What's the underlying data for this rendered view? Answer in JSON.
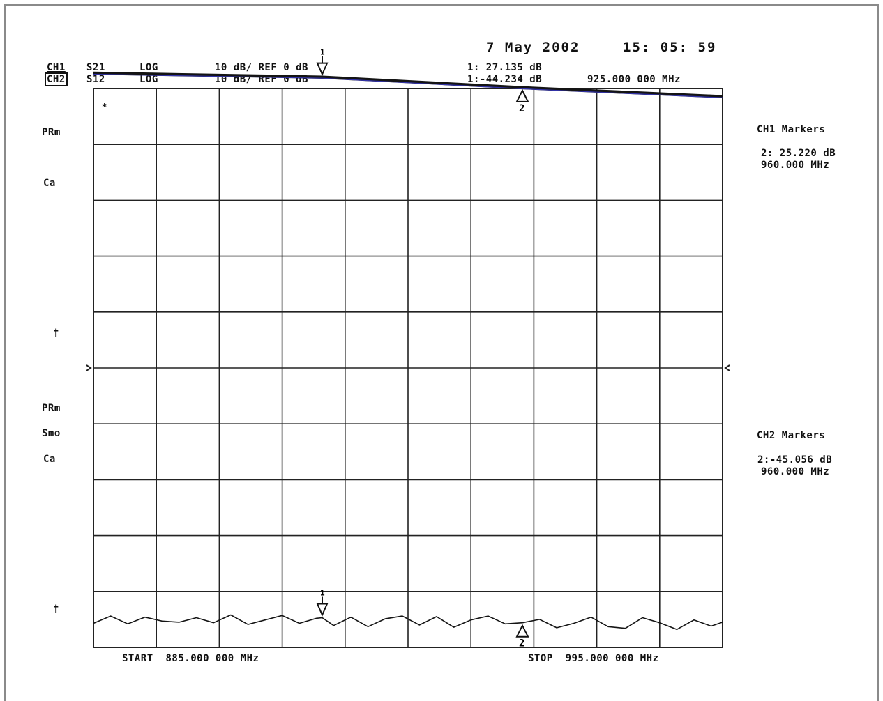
{
  "header": {
    "date": "7 May 2002",
    "time": "15: 05: 59",
    "ch1": {
      "label": "CH1",
      "param": "S21",
      "format": "LOG",
      "scale": "10 dB/ REF 0 dB"
    },
    "ch2": {
      "label": "CH2",
      "param": "S12",
      "format": "LOG",
      "scale": "10 dB/ REF 0 dB"
    },
    "marker1_ch1": "1: 27.135 dB",
    "marker1_ch2": "1:-44.234 dB",
    "marker1_freq": "925.000 000 MHz"
  },
  "left_annotations": {
    "ch1": [
      "PRm",
      "Ca"
    ],
    "ch1_ref": "†",
    "ch2": [
      "PRm",
      "Smo",
      "Ca"
    ],
    "ch2_ref": "†",
    "top_marker": "*"
  },
  "right_panel": {
    "ch1_title": "CH1 Markers",
    "ch1_value": "2: 25.220 dB",
    "ch1_freq": "960.000 MHz",
    "ch2_title": "CH2 Markers",
    "ch2_value": "2:-45.056 dB",
    "ch2_freq": "960.000 MHz"
  },
  "footer": {
    "start": "START  885.000 000 MHz",
    "stop": "STOP  995.000 000 MHz"
  },
  "colors": {
    "trace": "#141414",
    "trace_tint": "#3b3bd0",
    "grid": "#222222",
    "frame": "#8a8a8a"
  },
  "chart_data": {
    "type": "line",
    "x_start_mhz": 885,
    "x_stop_mhz": 995,
    "divisions_x": 10,
    "divisions_y": 10,
    "series": [
      {
        "name": "CH1 S21",
        "unit": "dB",
        "x_mhz": [
          885,
          925,
          960,
          995
        ],
        "y_db": [
          27.8,
          27.1,
          25.2,
          23.6
        ]
      },
      {
        "name": "CH2 S12",
        "unit": "dB",
        "x_mhz": [
          885,
          888,
          891,
          894,
          897,
          900,
          903,
          906,
          909,
          912,
          915,
          918,
          921,
          924,
          925,
          927,
          930,
          933,
          936,
          939,
          942,
          945,
          948,
          951,
          954,
          957,
          960,
          963,
          966,
          969,
          972,
          975,
          978,
          981,
          984,
          987,
          990,
          993,
          995
        ],
        "y_db": [
          -45.2,
          -43.9,
          -45.3,
          -44.1,
          -44.8,
          -45.0,
          -44.2,
          -45.1,
          -43.7,
          -45.4,
          -44.6,
          -43.8,
          -45.2,
          -44.3,
          -44.2,
          -45.6,
          -44.1,
          -45.8,
          -44.4,
          -43.9,
          -45.5,
          -44.0,
          -45.9,
          -44.6,
          -43.9,
          -45.3,
          -45.1,
          -44.5,
          -46.0,
          -45.2,
          -44.1,
          -45.8,
          -46.1,
          -44.2,
          -45.1,
          -46.3,
          -44.6,
          -45.7,
          -45.0
        ]
      }
    ],
    "markers": [
      {
        "channel": "CH1",
        "id": "1",
        "x_mhz": 925,
        "value": "27.135 dB"
      },
      {
        "channel": "CH1",
        "id": "2",
        "x_mhz": 960,
        "value": "25.220 dB"
      },
      {
        "channel": "CH2",
        "id": "1",
        "x_mhz": 925,
        "value": "-44.234 dB"
      },
      {
        "channel": "CH2",
        "id": "2",
        "x_mhz": 960,
        "value": "-45.056 dB"
      }
    ]
  }
}
